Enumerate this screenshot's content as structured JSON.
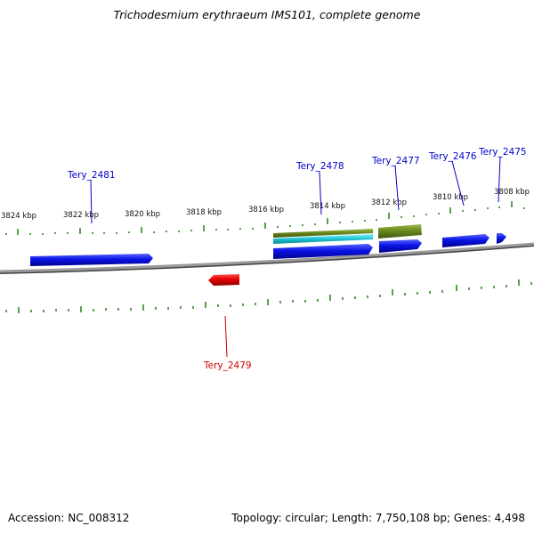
{
  "title": "Trichodesmium erythraeum IMS101, complete genome",
  "footer": {
    "accession": "Accession: NC_008312",
    "summary": "Topology: circular; Length: 7,750,108 bp; Genes: 4,498"
  },
  "colors": {
    "forward_gene": "#0a14e6",
    "reverse_gene": "#e60000",
    "olive_feature": "#6b8a1e",
    "cyan_feature": "#22c8d8",
    "tick": "#2d8a1e",
    "backbone": "#888888",
    "forward_label": "#0000cc",
    "reverse_label": "#cc0000"
  },
  "scale": {
    "tick_labels": [
      "3824 kbp",
      "3822 kbp",
      "3820 kbp",
      "3818 kbp",
      "3816 kbp",
      "3814 kbp",
      "3812 kbp",
      "3810 kbp",
      "3808 kbp"
    ]
  },
  "gene_labels": {
    "tery_2481": "Tery_2481",
    "tery_2478": "Tery_2478",
    "tery_2477": "Tery_2477",
    "tery_2476": "Tery_2476",
    "tery_2475": "Tery_2475",
    "tery_2479": "Tery_2479"
  }
}
